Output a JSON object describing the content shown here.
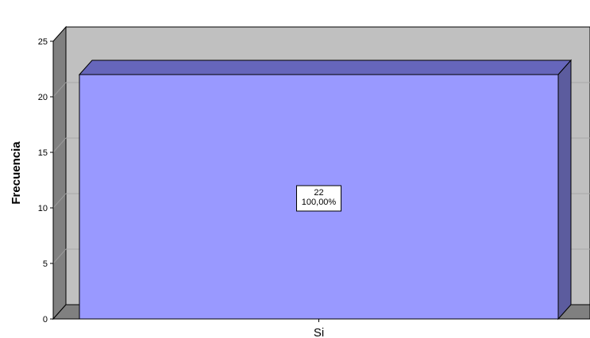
{
  "chart_data": {
    "type": "bar",
    "categories": [
      "Si"
    ],
    "values": [
      22
    ],
    "data_labels": [
      [
        "22",
        "100,00%"
      ]
    ],
    "ylabel": "Frecuencia",
    "xlabel": "",
    "ylim": [
      0,
      25
    ],
    "yticks": [
      "0",
      "5",
      "10",
      "15",
      "20",
      "25"
    ],
    "grid": true,
    "style": "3d",
    "colors": {
      "bar_front": "#9999ff",
      "bar_top": "#6666bb",
      "bar_side": "#5c5c9e",
      "back_wall": "#c0c0c0",
      "left_wall": "#808080",
      "floor": "#808080",
      "gridline": "#a8a8a8"
    }
  }
}
